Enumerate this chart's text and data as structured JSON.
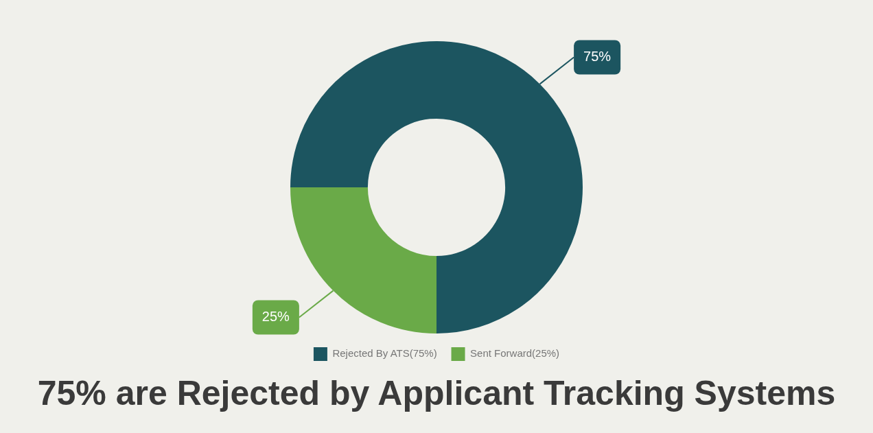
{
  "chart_data": {
    "type": "donut",
    "title": "75% are Rejected by Applicant Tracking Systems",
    "categories": [
      "Rejected By ATS(75%)",
      "Sent Forward(25%)"
    ],
    "values": [
      75,
      25
    ],
    "colors": [
      "#1c5560",
      "#6aaa48"
    ],
    "value_labels": [
      "75%",
      "25%"
    ],
    "legend": "bottom"
  }
}
